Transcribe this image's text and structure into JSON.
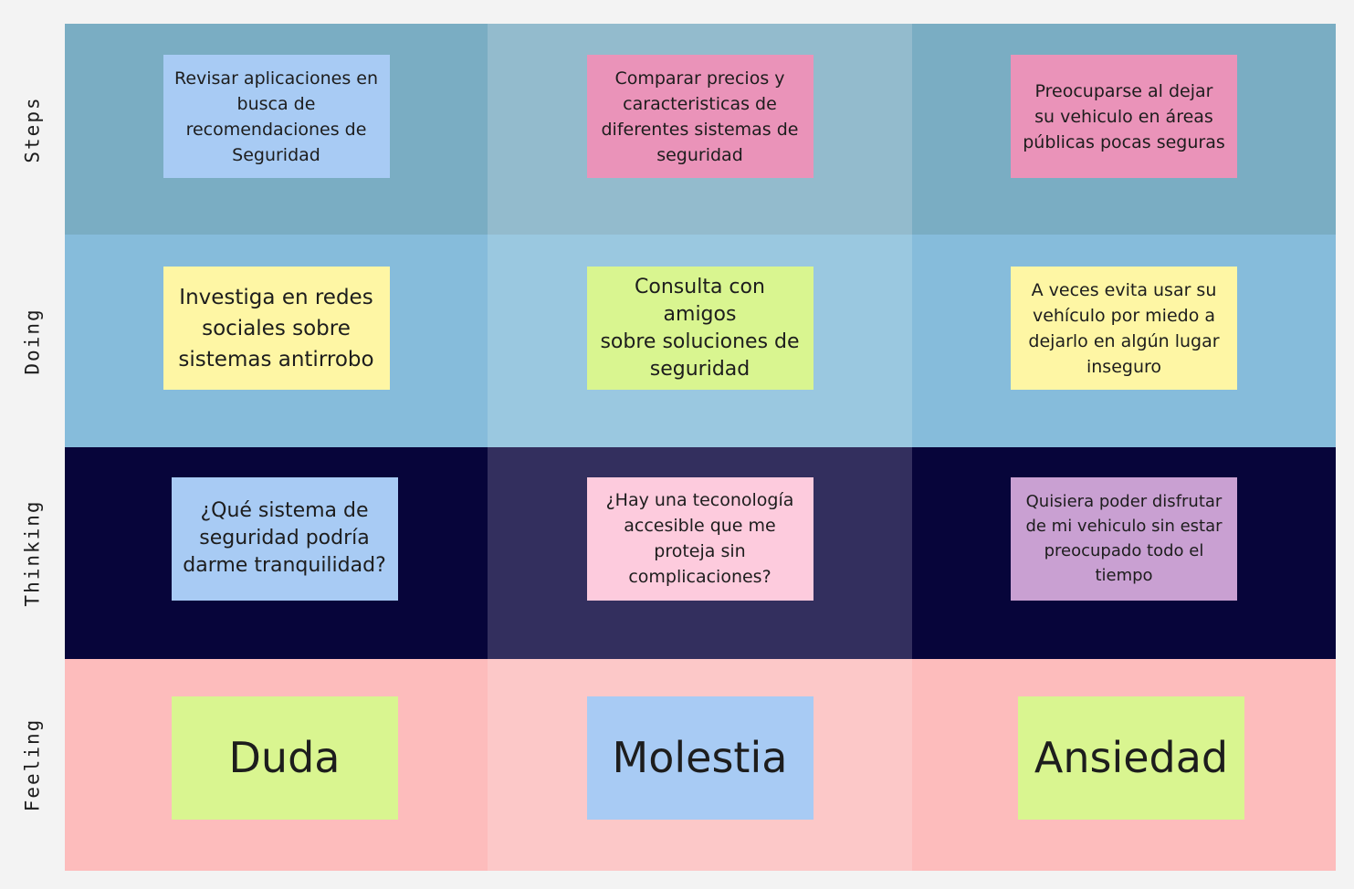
{
  "rows": [
    "Steps",
    "Doing",
    "Thinking",
    "Feeling"
  ],
  "notes": {
    "steps": [
      "Revisar aplicaciones en\nbusca de\nrecomendaciones de\nSeguridad",
      "Comparar precios y\ncaracteristicas de\ndiferentes sistemas de\nseguridad",
      "Preocuparse al dejar\nsu vehiculo en áreas\npúblicas pocas seguras"
    ],
    "doing": [
      "Investiga en redes\nsociales sobre\nsistemas antirrobo",
      "Consulta con amigos\nsobre soluciones de\nseguridad",
      "A veces evita usar su\nvehículo por miedo a\ndejarlo en algún lugar\ninseguro"
    ],
    "thinking": [
      "¿Qué sistema de\nseguridad podría\ndarme tranquilidad?",
      "¿Hay una teconología\naccesible que me\nproteja sin\ncomplicaciones?",
      "Quisiera poder disfrutar\nde mi vehiculo sin estar\npreocupado todo el\ntiempo"
    ],
    "feeling": [
      "Duda",
      "Molestia",
      "Ansiedad"
    ]
  },
  "colors": {
    "yellow": "#fef6a4",
    "blue": "#a8cbf4",
    "pink": "#ea93b9",
    "green": "#d9f590",
    "light_pink": "#fdcbdd",
    "purple": "#c9a0d2"
  }
}
